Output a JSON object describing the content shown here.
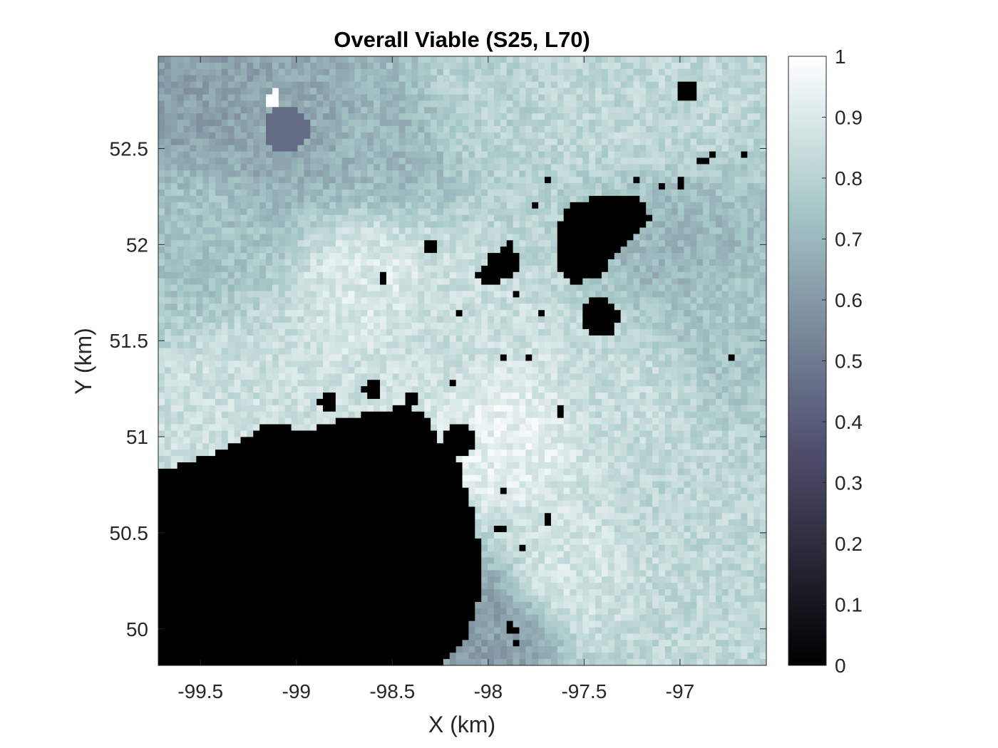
{
  "chart_data": {
    "type": "heatmap",
    "title": "Overall Viable (S25, L70)",
    "xlabel": "X (km)",
    "ylabel": "Y (km)",
    "xlim": [
      -99.72,
      -96.55
    ],
    "ylim": [
      49.81,
      52.98
    ],
    "x_ticks": [
      -99.5,
      -99,
      -98.5,
      -98,
      -97.5,
      -97
    ],
    "x_tick_labels": [
      "-99.5",
      "-99",
      "-98.5",
      "-98",
      "-97.5",
      "-97"
    ],
    "y_ticks": [
      50,
      50.5,
      51,
      51.5,
      52,
      52.5
    ],
    "y_tick_labels": [
      "50",
      "50.5",
      "51",
      "51.5",
      "52",
      "52.5"
    ],
    "colorbar": {
      "range": [
        0,
        1
      ],
      "ticks": [
        0,
        0.1,
        0.2,
        0.3,
        0.4,
        0.5,
        0.6,
        0.7,
        0.8,
        0.9,
        1
      ],
      "tick_labels": [
        "0",
        "0.1",
        "0.2",
        "0.3",
        "0.4",
        "0.5",
        "0.6",
        "0.7",
        "0.8",
        "0.9",
        "1"
      ],
      "colormap": "bone"
    },
    "grid": false,
    "field": {
      "background_value": 0.78,
      "gradient": [
        {
          "x": -99.5,
          "y": 52.8,
          "value": 0.62
        },
        {
          "x": -99.0,
          "y": 52.6,
          "value": 0.65
        },
        {
          "x": -98.5,
          "y": 52.5,
          "value": 0.7
        },
        {
          "x": -98.0,
          "y": 52.7,
          "value": 0.8
        },
        {
          "x": -97.5,
          "y": 52.8,
          "value": 0.82
        },
        {
          "x": -97.0,
          "y": 52.7,
          "value": 0.82
        },
        {
          "x": -99.5,
          "y": 52.0,
          "value": 0.74
        },
        {
          "x": -98.6,
          "y": 51.8,
          "value": 0.9
        },
        {
          "x": -98.2,
          "y": 51.6,
          "value": 0.85
        },
        {
          "x": -97.0,
          "y": 52.0,
          "value": 0.7
        },
        {
          "x": -96.7,
          "y": 51.5,
          "value": 0.75
        },
        {
          "x": -99.3,
          "y": 51.2,
          "value": 0.86
        },
        {
          "x": -97.9,
          "y": 51.0,
          "value": 0.93
        },
        {
          "x": -97.3,
          "y": 51.2,
          "value": 0.84
        },
        {
          "x": -97.0,
          "y": 50.7,
          "value": 0.82
        },
        {
          "x": -97.6,
          "y": 50.3,
          "value": 0.88
        },
        {
          "x": -98.0,
          "y": 50.0,
          "value": 0.62
        },
        {
          "x": -96.7,
          "y": 50.1,
          "value": 0.82
        }
      ],
      "dark_spots": [
        {
          "x": -99.05,
          "y": 52.6,
          "r": 0.12,
          "value": 0.45
        },
        {
          "x": -99.12,
          "y": 52.76,
          "r": 0.04,
          "value": 1.0
        }
      ],
      "zero_regions": [
        {
          "shape": "polygon",
          "points": [
            [
              -99.72,
              50.83
            ],
            [
              -99.55,
              50.87
            ],
            [
              -99.35,
              50.95
            ],
            [
              -99.12,
              51.08
            ],
            [
              -98.95,
              51.03
            ],
            [
              -98.75,
              51.1
            ],
            [
              -98.55,
              51.14
            ],
            [
              -98.4,
              51.16
            ],
            [
              -98.3,
              51.08
            ],
            [
              -98.25,
              50.95
            ],
            [
              -98.15,
              50.85
            ],
            [
              -98.08,
              50.6
            ],
            [
              -98.02,
              50.35
            ],
            [
              -98.05,
              50.15
            ],
            [
              -98.12,
              49.95
            ],
            [
              -98.25,
              49.81
            ],
            [
              -99.72,
              49.81
            ]
          ]
        },
        {
          "shape": "polygon",
          "points": [
            [
              -97.65,
              52.1
            ],
            [
              -97.55,
              52.22
            ],
            [
              -97.42,
              52.25
            ],
            [
              -97.3,
              52.27
            ],
            [
              -97.2,
              52.25
            ],
            [
              -97.15,
              52.12
            ],
            [
              -97.25,
              52.05
            ],
            [
              -97.33,
              51.95
            ],
            [
              -97.42,
              51.82
            ],
            [
              -97.55,
              51.8
            ],
            [
              -97.65,
              51.9
            ]
          ]
        },
        {
          "shape": "polygon",
          "points": [
            [
              -98.06,
              51.83
            ],
            [
              -97.98,
              51.95
            ],
            [
              -97.88,
              52.02
            ],
            [
              -97.82,
              51.88
            ],
            [
              -97.92,
              51.82
            ],
            [
              -98.0,
              51.78
            ]
          ]
        },
        {
          "shape": "circle",
          "x": -97.42,
          "y": 51.62,
          "r": 0.1
        },
        {
          "shape": "circle",
          "x": -98.15,
          "y": 50.98,
          "r": 0.08
        },
        {
          "shape": "circle",
          "x": -98.83,
          "y": 51.17,
          "r": 0.05
        },
        {
          "shape": "circle",
          "x": -98.6,
          "y": 51.25,
          "r": 0.05
        },
        {
          "shape": "circle",
          "x": -98.39,
          "y": 51.2,
          "r": 0.04
        },
        {
          "shape": "circle",
          "x": -98.3,
          "y": 51.99,
          "r": 0.04
        },
        {
          "shape": "circle",
          "x": -98.55,
          "y": 51.83,
          "r": 0.025
        },
        {
          "shape": "circle",
          "x": -96.96,
          "y": 52.8,
          "r": 0.05
        },
        {
          "shape": "circle",
          "x": -97.0,
          "y": 52.32,
          "r": 0.02
        },
        {
          "shape": "circle",
          "x": -96.88,
          "y": 52.43,
          "r": 0.03
        },
        {
          "shape": "circle",
          "x": -96.82,
          "y": 52.47,
          "r": 0.015
        },
        {
          "shape": "circle",
          "x": -96.75,
          "y": 52.58,
          "r": 0.015
        },
        {
          "shape": "circle",
          "x": -96.67,
          "y": 52.47,
          "r": 0.015
        },
        {
          "shape": "circle",
          "x": -97.1,
          "y": 52.3,
          "r": 0.02
        },
        {
          "shape": "circle",
          "x": -97.22,
          "y": 52.35,
          "r": 0.02
        },
        {
          "shape": "circle",
          "x": -97.68,
          "y": 52.35,
          "r": 0.02
        },
        {
          "shape": "circle",
          "x": -97.75,
          "y": 52.2,
          "r": 0.025
        },
        {
          "shape": "circle",
          "x": -97.85,
          "y": 51.75,
          "r": 0.015
        },
        {
          "shape": "circle",
          "x": -97.72,
          "y": 51.65,
          "r": 0.015
        },
        {
          "shape": "circle",
          "x": -98.14,
          "y": 51.65,
          "r": 0.015
        },
        {
          "shape": "circle",
          "x": -97.91,
          "y": 51.42,
          "r": 0.02
        },
        {
          "shape": "circle",
          "x": -97.79,
          "y": 51.42,
          "r": 0.02
        },
        {
          "shape": "circle",
          "x": -97.62,
          "y": 51.13,
          "r": 0.03
        },
        {
          "shape": "circle",
          "x": -96.74,
          "y": 51.42,
          "r": 0.02
        },
        {
          "shape": "circle",
          "x": -98.19,
          "y": 51.28,
          "r": 0.015
        },
        {
          "shape": "circle",
          "x": -97.92,
          "y": 50.72,
          "r": 0.015
        },
        {
          "shape": "circle",
          "x": -97.69,
          "y": 50.57,
          "r": 0.03
        },
        {
          "shape": "circle",
          "x": -97.93,
          "y": 50.52,
          "r": 0.025
        },
        {
          "shape": "circle",
          "x": -97.82,
          "y": 50.42,
          "r": 0.02
        },
        {
          "shape": "circle",
          "x": -97.88,
          "y": 50.0,
          "r": 0.03
        },
        {
          "shape": "circle",
          "x": -97.84,
          "y": 49.93,
          "r": 0.015
        },
        {
          "shape": "circle",
          "x": -97.62,
          "y": 50.14,
          "r": 0.015
        },
        {
          "shape": "circle",
          "x": -97.45,
          "y": 50.14,
          "r": 0.015
        }
      ]
    }
  }
}
